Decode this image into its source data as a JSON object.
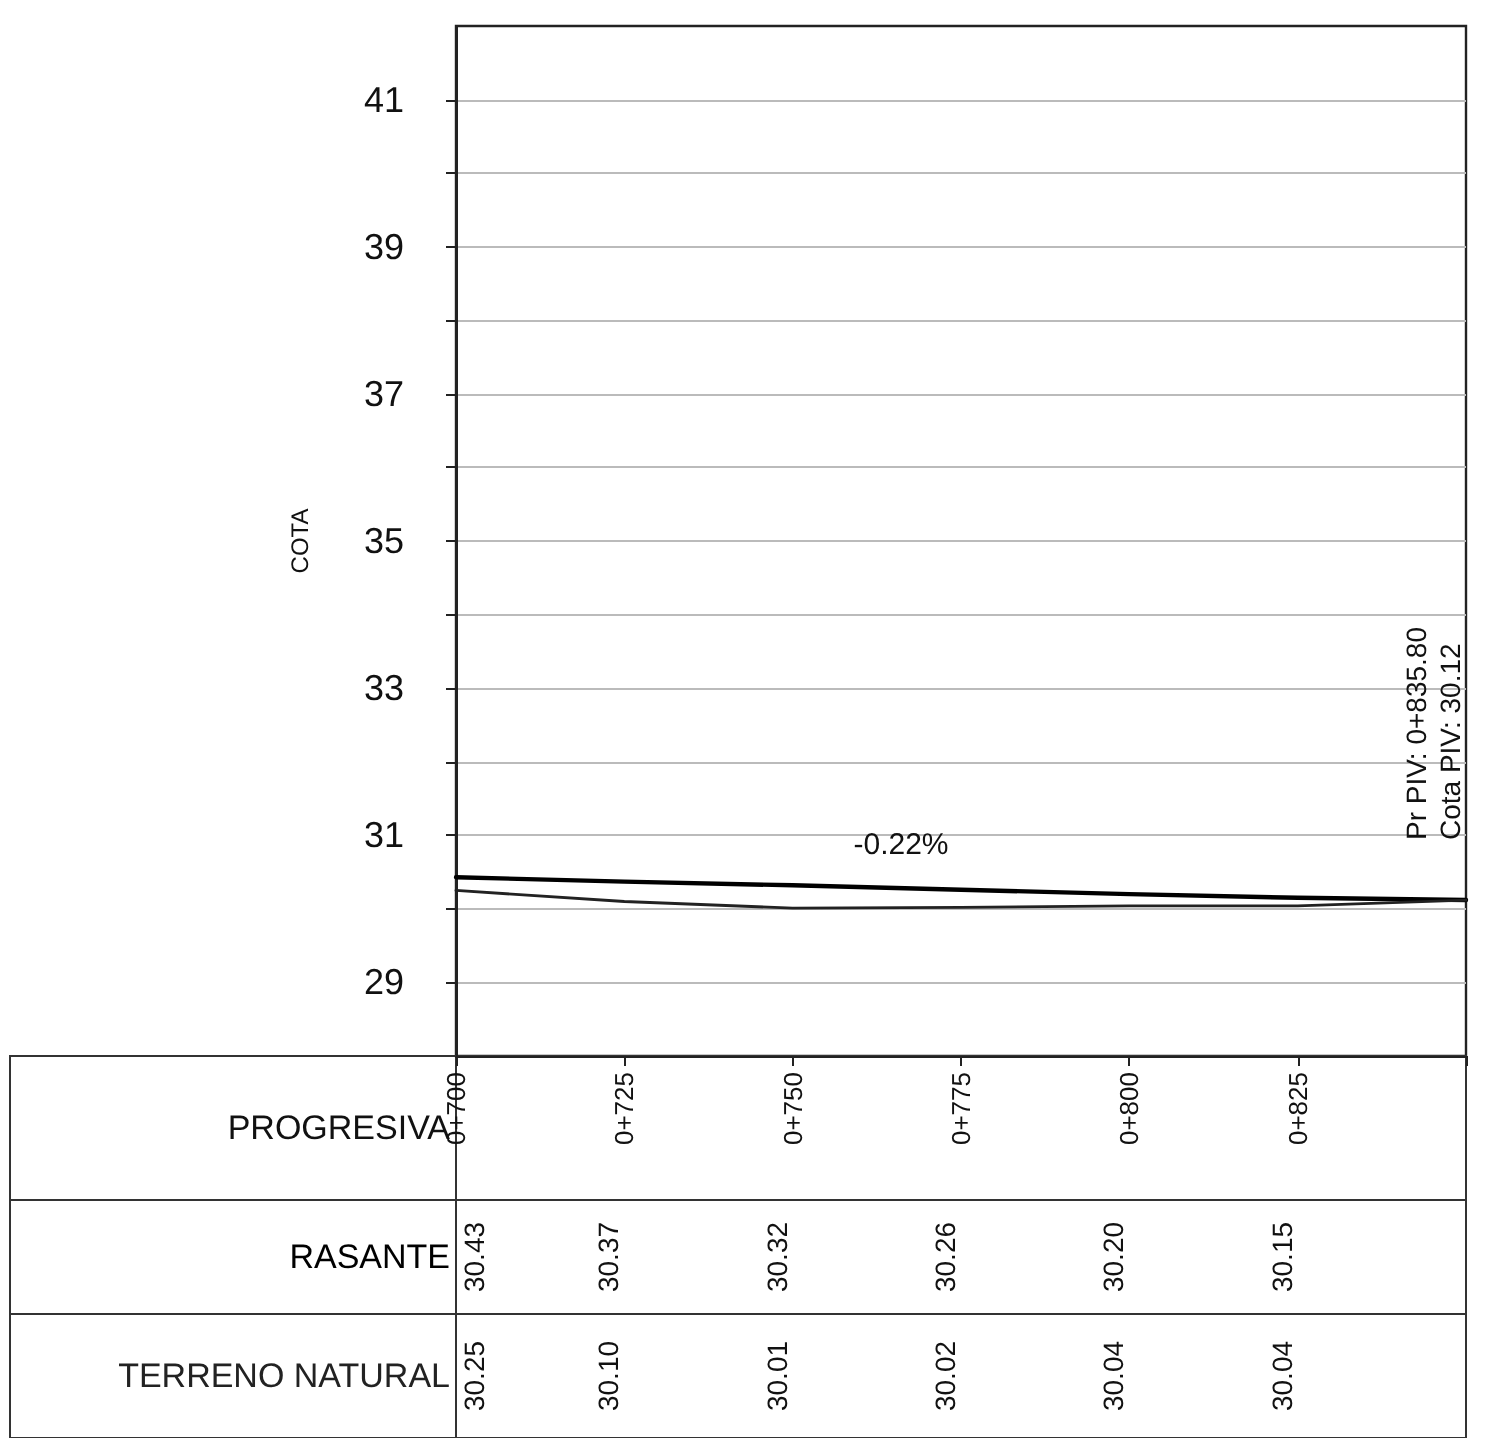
{
  "chart_data": {
    "type": "line",
    "xlabel": "PROGRESIVA",
    "ylabel": "COTA",
    "categories": [
      "0+700",
      "0+725",
      "0+750",
      "0+775",
      "0+800",
      "0+825",
      null
    ],
    "series": [
      {
        "name": "RASANTE",
        "color": "#000000",
        "values": [
          30.43,
          30.37,
          30.32,
          30.26,
          30.2,
          30.15,
          30.12
        ],
        "value_labels": [
          "30.43",
          "30.37",
          "30.32",
          "30.26",
          "30.20",
          "30.15",
          null
        ]
      },
      {
        "name": "TERRENO NATURAL",
        "color": "#222222",
        "values": [
          30.25,
          30.1,
          30.01,
          30.02,
          30.04,
          30.04,
          30.12
        ],
        "value_labels": [
          "30.25",
          "30.10",
          "30.01",
          "30.02",
          "30.04",
          "30.04",
          null
        ]
      }
    ],
    "ylim": [
      28,
      42
    ],
    "yticks": [
      29,
      {
        "value": 30,
        "label": null
      },
      31,
      {
        "value": 32,
        "label": null
      },
      33,
      {
        "value": 34,
        "label": null
      },
      35,
      {
        "value": 36,
        "label": null
      },
      37,
      {
        "value": 38,
        "label": null
      },
      39,
      {
        "value": 40,
        "label": null
      },
      41
    ],
    "annotations": [
      "-0.22%",
      "Pr PIV: 0+835.80",
      "Cota PIV: 30.12"
    ],
    "grid": "y",
    "legend": false,
    "marker": "none",
    "line_style": "solid"
  }
}
